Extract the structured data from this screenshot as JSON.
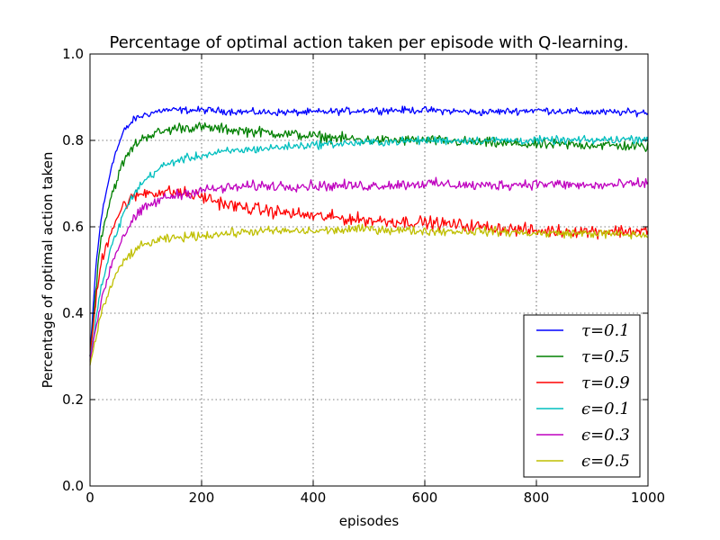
{
  "chart_data": {
    "type": "line",
    "title": "Percentage of optimal action taken per episode with Q-learning.",
    "xlabel": "episodes",
    "ylabel": "Percentage of optimal action taken",
    "xlim": [
      0,
      1000
    ],
    "ylim": [
      0.0,
      1.0
    ],
    "xticks": [
      0,
      200,
      400,
      600,
      800,
      1000
    ],
    "yticks": [
      0.0,
      0.2,
      0.4,
      0.6,
      0.8,
      1.0
    ],
    "xtick_labels": [
      "0",
      "200",
      "400",
      "600",
      "800",
      "1000"
    ],
    "ytick_labels": [
      "0.0",
      "0.2",
      "0.4",
      "0.6",
      "0.8",
      "1.0"
    ],
    "grid": true,
    "legend_position": "lower-right",
    "series": [
      {
        "name": "τ=0.1",
        "color": "#0000ff",
        "x": [
          0,
          10,
          20,
          40,
          60,
          80,
          100,
          130,
          160,
          200,
          300,
          400,
          500,
          600,
          700,
          800,
          900,
          1000
        ],
        "y": [
          0.3,
          0.5,
          0.62,
          0.75,
          0.82,
          0.85,
          0.86,
          0.87,
          0.87,
          0.87,
          0.865,
          0.865,
          0.87,
          0.87,
          0.865,
          0.87,
          0.865,
          0.865
        ]
      },
      {
        "name": "τ=0.5",
        "color": "#008000",
        "x": [
          0,
          10,
          20,
          40,
          60,
          80,
          100,
          130,
          160,
          200,
          300,
          400,
          500,
          600,
          700,
          800,
          900,
          1000
        ],
        "y": [
          0.3,
          0.45,
          0.58,
          0.68,
          0.75,
          0.79,
          0.81,
          0.82,
          0.83,
          0.83,
          0.82,
          0.81,
          0.8,
          0.8,
          0.795,
          0.79,
          0.79,
          0.785
        ]
      },
      {
        "name": "τ=0.9",
        "color": "#ff0000",
        "x": [
          0,
          10,
          20,
          40,
          60,
          80,
          100,
          130,
          160,
          200,
          250,
          300,
          400,
          500,
          600,
          700,
          800,
          900,
          1000
        ],
        "y": [
          0.3,
          0.42,
          0.52,
          0.6,
          0.65,
          0.67,
          0.68,
          0.68,
          0.68,
          0.67,
          0.65,
          0.64,
          0.625,
          0.615,
          0.61,
          0.6,
          0.59,
          0.59,
          0.59
        ]
      },
      {
        "name": "ϵ=0.1",
        "color": "#00bfbf",
        "x": [
          0,
          10,
          20,
          40,
          60,
          80,
          100,
          130,
          160,
          200,
          250,
          300,
          400,
          500,
          600,
          700,
          800,
          900,
          1000
        ],
        "y": [
          0.29,
          0.38,
          0.46,
          0.56,
          0.63,
          0.68,
          0.71,
          0.74,
          0.755,
          0.765,
          0.775,
          0.78,
          0.79,
          0.795,
          0.8,
          0.8,
          0.8,
          0.8,
          0.805
        ]
      },
      {
        "name": "ϵ=0.3",
        "color": "#bf00bf",
        "x": [
          0,
          10,
          20,
          40,
          60,
          80,
          100,
          130,
          160,
          200,
          250,
          300,
          400,
          500,
          600,
          700,
          800,
          900,
          1000
        ],
        "y": [
          0.29,
          0.36,
          0.43,
          0.52,
          0.58,
          0.62,
          0.645,
          0.665,
          0.675,
          0.685,
          0.69,
          0.695,
          0.695,
          0.695,
          0.7,
          0.695,
          0.7,
          0.695,
          0.7
        ]
      },
      {
        "name": "ϵ=0.5",
        "color": "#bfbf00",
        "x": [
          0,
          10,
          20,
          40,
          60,
          80,
          100,
          130,
          160,
          200,
          250,
          300,
          400,
          500,
          600,
          700,
          800,
          900,
          1000
        ],
        "y": [
          0.28,
          0.34,
          0.4,
          0.47,
          0.52,
          0.545,
          0.56,
          0.57,
          0.575,
          0.58,
          0.585,
          0.59,
          0.59,
          0.595,
          0.59,
          0.59,
          0.585,
          0.585,
          0.58
        ]
      }
    ]
  }
}
